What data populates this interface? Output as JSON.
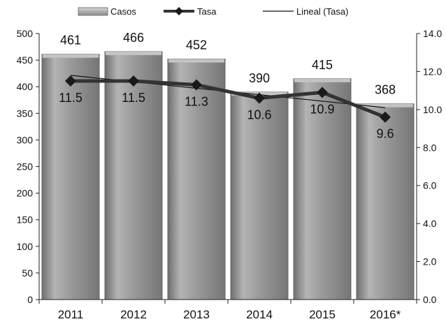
{
  "chart_data": {
    "type": "bar",
    "categories": [
      "2011",
      "2012",
      "2013",
      "2014",
      "2015",
      "2016*"
    ],
    "series": [
      {
        "name": "Casos",
        "type": "bar",
        "axis": "left",
        "values": [
          461,
          466,
          452,
          390,
          415,
          368
        ]
      },
      {
        "name": "Tasa",
        "type": "line",
        "axis": "right",
        "values": [
          11.5,
          11.5,
          11.3,
          10.6,
          10.9,
          9.6
        ]
      },
      {
        "name": "Lineal (Tasa)",
        "type": "trendline",
        "axis": "right",
        "values": [
          11.8,
          11.46,
          11.12,
          10.78,
          10.44,
          10.1
        ]
      }
    ],
    "bar_labels": [
      "461",
      "466",
      "452",
      "390",
      "415",
      "368"
    ],
    "rate_labels": [
      "11.5",
      "11.5",
      "11.3",
      "10.6",
      "10.9",
      "9.6"
    ],
    "y_left": {
      "ylim": [
        0,
        500
      ],
      "ticks": [
        "0",
        "50",
        "100",
        "150",
        "200",
        "250",
        "300",
        "350",
        "400",
        "450",
        "500"
      ]
    },
    "y_right": {
      "ylim": [
        0,
        14
      ],
      "ticks": [
        "0.0",
        "2.0",
        "4.0",
        "6.0",
        "8.0",
        "10.0",
        "12.0",
        "14.0"
      ]
    },
    "legend": {
      "placement": "top"
    },
    "grid": false,
    "colors": {
      "bar": "#8f8f8f",
      "bar_light": "#c4c4c4",
      "line": "#333333",
      "marker": "#1a1a1a",
      "trend": "#111111"
    }
  }
}
